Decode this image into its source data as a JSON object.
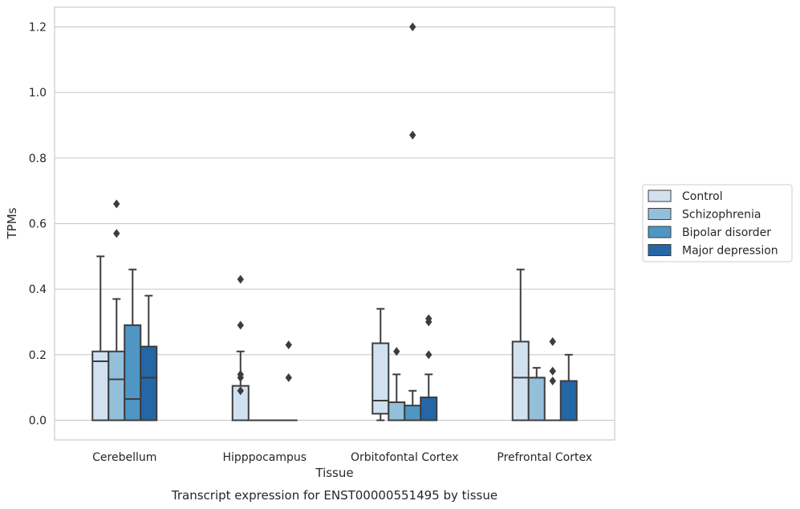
{
  "chart_data": {
    "type": "box",
    "title": "",
    "caption": "Transcript expression for ENST00000551495 by tissue",
    "xlabel": "Tissue",
    "ylabel": "TPMs",
    "ylim": [
      -0.06,
      1.26
    ],
    "yticks": [
      0.0,
      0.2,
      0.4,
      0.6,
      0.8,
      1.0,
      1.2
    ],
    "ytick_labels": [
      "0.0",
      "0.2",
      "0.4",
      "0.6",
      "0.8",
      "1.0",
      "1.2"
    ],
    "grid": "horizontal",
    "legend_position": "right",
    "categories": [
      "Cerebellum",
      "Hipppocampus",
      "Orbitofontal Cortex",
      "Prefrontal Cortex"
    ],
    "series": [
      {
        "name": "Control",
        "color": "#d1e1ef",
        "boxes": [
          {
            "q1": 0.0,
            "median": 0.18,
            "q3": 0.21,
            "whisker_low": 0.0,
            "whisker_high": 0.5,
            "outliers": []
          },
          {
            "q1": 0.0,
            "median": 0.0,
            "q3": 0.105,
            "whisker_low": 0.0,
            "whisker_high": 0.21,
            "outliers": [
              0.43,
              0.29,
              0.14,
              0.13,
              0.09
            ]
          },
          {
            "q1": 0.02,
            "median": 0.06,
            "q3": 0.235,
            "whisker_low": 0.0,
            "whisker_high": 0.34,
            "outliers": []
          },
          {
            "q1": 0.0,
            "median": 0.13,
            "q3": 0.24,
            "whisker_low": 0.0,
            "whisker_high": 0.46,
            "outliers": []
          }
        ]
      },
      {
        "name": "Schizophrenia",
        "color": "#93bfdb",
        "boxes": [
          {
            "q1": 0.0,
            "median": 0.125,
            "q3": 0.21,
            "whisker_low": 0.0,
            "whisker_high": 0.37,
            "outliers": [
              0.66,
              0.57
            ]
          },
          {
            "q1": 0.0,
            "median": 0.0,
            "q3": 0.0,
            "whisker_low": 0.0,
            "whisker_high": 0.0,
            "outliers": []
          },
          {
            "q1": 0.0,
            "median": 0.0,
            "q3": 0.055,
            "whisker_low": 0.0,
            "whisker_high": 0.14,
            "outliers": [
              0.21
            ]
          },
          {
            "q1": 0.0,
            "median": 0.13,
            "q3": 0.13,
            "whisker_low": 0.0,
            "whisker_high": 0.16,
            "outliers": []
          }
        ]
      },
      {
        "name": "Bipolar disorder",
        "color": "#5096c4",
        "boxes": [
          {
            "q1": 0.0,
            "median": 0.065,
            "q3": 0.29,
            "whisker_low": 0.0,
            "whisker_high": 0.46,
            "outliers": []
          },
          {
            "q1": 0.0,
            "median": 0.0,
            "q3": 0.0,
            "whisker_low": 0.0,
            "whisker_high": 0.0,
            "outliers": []
          },
          {
            "q1": 0.0,
            "median": 0.0,
            "q3": 0.045,
            "whisker_low": 0.0,
            "whisker_high": 0.09,
            "outliers": [
              1.2,
              0.87
            ]
          },
          {
            "q1": 0.0,
            "median": 0.0,
            "q3": 0.0,
            "whisker_low": 0.0,
            "whisker_high": 0.0,
            "outliers": [
              0.24,
              0.15,
              0.12
            ]
          }
        ]
      },
      {
        "name": "Major depression",
        "color": "#2466a6",
        "boxes": [
          {
            "q1": 0.0,
            "median": 0.13,
            "q3": 0.225,
            "whisker_low": 0.0,
            "whisker_high": 0.38,
            "outliers": []
          },
          {
            "q1": 0.0,
            "median": 0.0,
            "q3": 0.0,
            "whisker_low": 0.0,
            "whisker_high": 0.0,
            "outliers": [
              0.23,
              0.13
            ]
          },
          {
            "q1": 0.0,
            "median": 0.0,
            "q3": 0.07,
            "whisker_low": 0.0,
            "whisker_high": 0.14,
            "outliers": [
              0.31,
              0.3,
              0.2
            ]
          },
          {
            "q1": 0.0,
            "median": 0.12,
            "q3": 0.12,
            "whisker_low": 0.0,
            "whisker_high": 0.2,
            "outliers": []
          }
        ]
      }
    ]
  }
}
